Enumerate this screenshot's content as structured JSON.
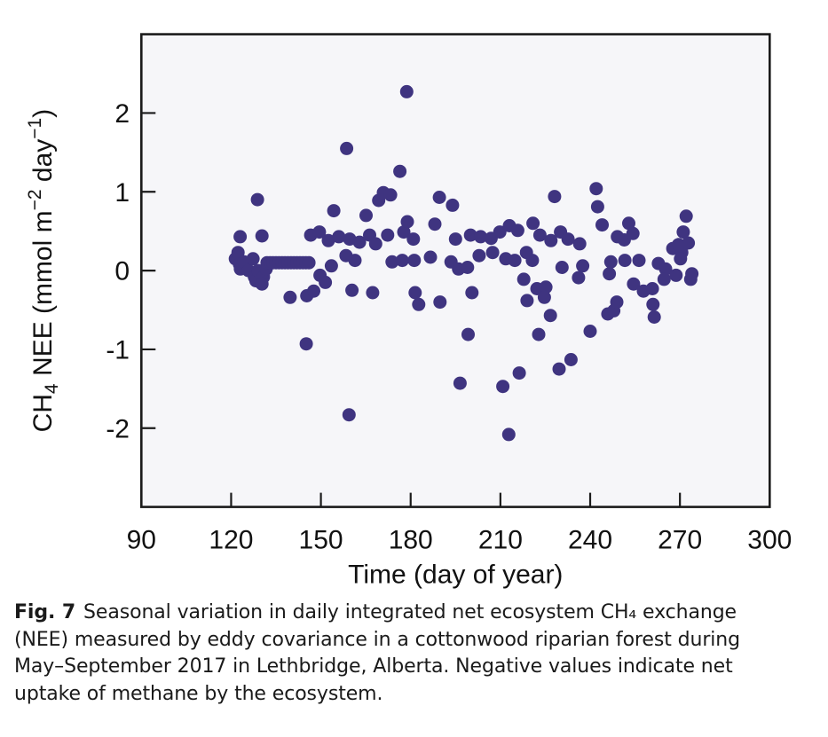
{
  "chart_data": {
    "type": "scatter",
    "title": "",
    "xlabel": "Time (day of year)",
    "ylabel": "CH4 NEE (mmol m-2 day-1)",
    "ylabel_segments": [
      {
        "text": "CH",
        "style": "normal"
      },
      {
        "text": "4",
        "style": "sub"
      },
      {
        "text": " NEE (mmol m",
        "style": "normal"
      },
      {
        "text": "−2",
        "style": "sup"
      },
      {
        "text": " day",
        "style": "normal"
      },
      {
        "text": "−1",
        "style": "sup"
      },
      {
        "text": ")",
        "style": "normal"
      }
    ],
    "xlim": [
      90,
      300
    ],
    "ylim": [
      -3,
      3
    ],
    "xticks": [
      90,
      120,
      150,
      180,
      210,
      240,
      270,
      300
    ],
    "yticks": [
      2,
      1,
      0,
      -1,
      -2
    ],
    "grid": false,
    "legend": null,
    "marker_color": "#3f3480",
    "plot_bg": "#f6f6f9",
    "axis_color": "#1b1b1b",
    "points": [
      [
        121.4,
        0.15
      ],
      [
        122.3,
        0.23
      ],
      [
        123.0,
        0.43
      ],
      [
        122.8,
        0.08
      ],
      [
        123.1,
        0.02
      ],
      [
        124.3,
        0.11
      ],
      [
        125.8,
        0.0
      ],
      [
        127.3,
        0.15
      ],
      [
        127.8,
        -0.08
      ],
      [
        128.3,
        -0.13
      ],
      [
        128.8,
        0.9
      ],
      [
        129.0,
        0.0
      ],
      [
        130.8,
        -0.08
      ],
      [
        130.3,
        -0.17
      ],
      [
        130.3,
        0.44
      ],
      [
        131.7,
        0.02
      ],
      [
        132,
        0.1
      ],
      [
        133,
        0.1
      ],
      [
        134,
        0.1
      ],
      [
        135,
        0.1
      ],
      [
        136,
        0.1
      ],
      [
        137,
        0.1
      ],
      [
        138,
        0.1
      ],
      [
        139,
        0.1
      ],
      [
        140,
        0.1
      ],
      [
        141,
        0.1
      ],
      [
        142,
        0.1
      ],
      [
        143,
        0.1
      ],
      [
        144,
        0.1
      ],
      [
        145,
        0.1
      ],
      [
        146,
        0.1
      ],
      [
        139.7,
        -0.34
      ],
      [
        145.1,
        -0.93
      ],
      [
        145.3,
        -0.32
      ],
      [
        147.6,
        -0.26
      ],
      [
        146.6,
        0.45
      ],
      [
        149.5,
        0.49
      ],
      [
        149.7,
        -0.06
      ],
      [
        151.5,
        -0.15
      ],
      [
        152.5,
        0.38
      ],
      [
        153.5,
        0.06
      ],
      [
        154.3,
        0.76
      ],
      [
        156.0,
        0.43
      ],
      [
        158.6,
        1.55
      ],
      [
        158.4,
        0.19
      ],
      [
        159.4,
        -1.83
      ],
      [
        159.6,
        0.4
      ],
      [
        160.4,
        -0.25
      ],
      [
        161.4,
        0.13
      ],
      [
        162.9,
        0.36
      ],
      [
        165.1,
        0.7
      ],
      [
        166.3,
        0.45
      ],
      [
        167.3,
        -0.28
      ],
      [
        168.3,
        0.34
      ],
      [
        169.3,
        0.89
      ],
      [
        170.9,
        0.99
      ],
      [
        172.3,
        0.45
      ],
      [
        173.3,
        0.96
      ],
      [
        173.8,
        0.11
      ],
      [
        177.7,
        0.49
      ],
      [
        176.4,
        1.26
      ],
      [
        178.7,
        2.27
      ],
      [
        177.2,
        0.13
      ],
      [
        178.9,
        0.62
      ],
      [
        180.9,
        0.4
      ],
      [
        181.2,
        0.13
      ],
      [
        181.5,
        -0.28
      ],
      [
        182.7,
        -0.43
      ],
      [
        186.6,
        0.17
      ],
      [
        188.1,
        0.59
      ],
      [
        189.6,
        0.93
      ],
      [
        189.8,
        -0.4
      ],
      [
        193.5,
        0.11
      ],
      [
        194.0,
        0.83
      ],
      [
        195.0,
        0.4
      ],
      [
        196.5,
        -1.43
      ],
      [
        196.0,
        0.02
      ],
      [
        199.0,
        0.04
      ],
      [
        199.2,
        -0.81
      ],
      [
        200.0,
        0.45
      ],
      [
        200.5,
        -0.28
      ],
      [
        202.9,
        0.19
      ],
      [
        203.4,
        0.43
      ],
      [
        206.9,
        0.41
      ],
      [
        207.4,
        0.23
      ],
      [
        209.8,
        0.49
      ],
      [
        212.8,
        -2.08
      ],
      [
        210.8,
        -1.47
      ],
      [
        211.8,
        0.15
      ],
      [
        213.0,
        0.57
      ],
      [
        216.3,
        -1.3
      ],
      [
        214.8,
        0.13
      ],
      [
        215.8,
        0.51
      ],
      [
        217.8,
        -0.11
      ],
      [
        218.7,
        0.23
      ],
      [
        218.9,
        -0.38
      ],
      [
        220.7,
        0.13
      ],
      [
        220.9,
        0.6
      ],
      [
        222.2,
        -0.23
      ],
      [
        223.2,
        0.45
      ],
      [
        222.8,
        -0.81
      ],
      [
        225.2,
        -0.21
      ],
      [
        224.7,
        -0.34
      ],
      [
        226.7,
        -0.57
      ],
      [
        226.9,
        0.38
      ],
      [
        228.1,
        0.94
      ],
      [
        230.1,
        0.49
      ],
      [
        230.6,
        0.04
      ],
      [
        229.6,
        -1.25
      ],
      [
        233.6,
        -1.13
      ],
      [
        232.6,
        0.4
      ],
      [
        236.1,
        -0.09
      ],
      [
        236.5,
        0.34
      ],
      [
        237.5,
        0.06
      ],
      [
        242.0,
        1.04
      ],
      [
        240.0,
        -0.77
      ],
      [
        242.5,
        0.81
      ],
      [
        244.0,
        0.58
      ],
      [
        245.9,
        -0.55
      ],
      [
        246.4,
        -0.04
      ],
      [
        246.9,
        0.11
      ],
      [
        247.9,
        -0.51
      ],
      [
        248.9,
        -0.4
      ],
      [
        249.1,
        0.43
      ],
      [
        251.4,
        0.39
      ],
      [
        251.6,
        0.13
      ],
      [
        252.9,
        0.6
      ],
      [
        254.3,
        0.47
      ],
      [
        254.5,
        -0.17
      ],
      [
        256.3,
        0.13
      ],
      [
        257.8,
        -0.26
      ],
      [
        260.8,
        -0.23
      ],
      [
        261.0,
        -0.43
      ],
      [
        261.4,
        -0.59
      ],
      [
        262.8,
        0.09
      ],
      [
        265.2,
        0.02
      ],
      [
        264.7,
        -0.11
      ],
      [
        268.7,
        -0.06
      ],
      [
        273.6,
        -0.11
      ],
      [
        272.1,
        0.69
      ],
      [
        271.1,
        0.49
      ],
      [
        267.6,
        0.28
      ],
      [
        270.6,
        0.23
      ],
      [
        269.5,
        0.33
      ],
      [
        272.8,
        0.35
      ],
      [
        274.0,
        -0.04
      ],
      [
        270.2,
        0.15
      ]
    ]
  },
  "caption": {
    "fig_label": "Fig. 7",
    "lines": [
      "Seasonal variation in daily integrated net ecosystem CH₄ exchange",
      "(NEE) measured by eddy covariance in a cottonwood riparian forest during",
      "May–September 2017 in Lethbridge, Alberta. Negative values indicate net",
      "uptake of methane by the ecosystem."
    ]
  }
}
